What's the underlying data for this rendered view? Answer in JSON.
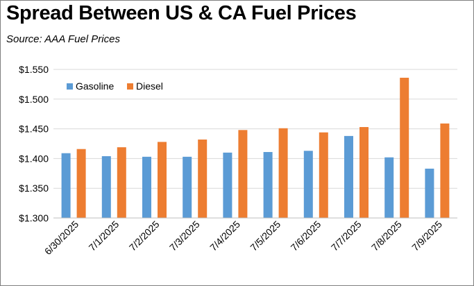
{
  "chart_data": {
    "type": "bar",
    "title": "Spread Between US & CA Fuel Prices",
    "subtitle": "Source:  AAA Fuel Prices",
    "categories": [
      "6/30/2025",
      "7/1/2025",
      "7/2/2025",
      "7/3/2025",
      "7/4/2025",
      "7/5/2025",
      "7/6/2025",
      "7/7/2025",
      "7/8/2025",
      "7/9/2025"
    ],
    "series": [
      {
        "name": "Gasoline",
        "color": "#5b9bd5",
        "values": [
          1.409,
          1.404,
          1.403,
          1.403,
          1.41,
          1.411,
          1.413,
          1.438,
          1.402,
          1.383
        ]
      },
      {
        "name": "Diesel",
        "color": "#ed7d31",
        "values": [
          1.416,
          1.419,
          1.428,
          1.432,
          1.448,
          1.451,
          1.444,
          1.453,
          1.536,
          1.459
        ]
      }
    ],
    "ylim": [
      1.3,
      1.55
    ],
    "yticks": [
      "$1.550",
      "$1.500",
      "$1.450",
      "$1.400",
      "$1.350",
      "$1.300"
    ],
    "ytick_values": [
      1.55,
      1.5,
      1.45,
      1.4,
      1.35,
      1.3
    ],
    "grid": true,
    "legend_position": "top-left",
    "xlabel": "",
    "ylabel": ""
  }
}
